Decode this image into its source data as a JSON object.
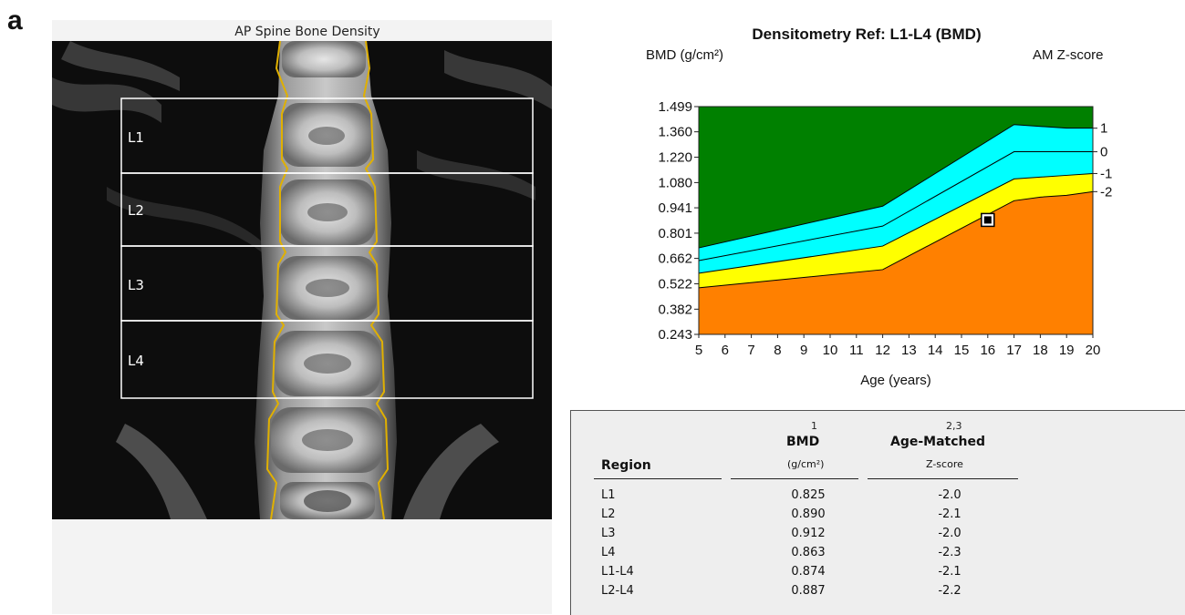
{
  "figure": {
    "panel_letter": "a"
  },
  "scan": {
    "title": "AP Spine Bone Density",
    "regions": [
      "L1",
      "L2",
      "L3",
      "L4"
    ]
  },
  "chart_data": {
    "type": "area",
    "title": "Densitometry Ref: L1-L4 (BMD)",
    "ylabel": "BMD (g/cm²)",
    "y2label": "AM Z-score",
    "xlabel": "Age (years)",
    "x_ticks": [
      "5",
      "6",
      "7",
      "8",
      "9",
      "10",
      "11",
      "12",
      "13",
      "14",
      "15",
      "16",
      "17",
      "18",
      "19",
      "20"
    ],
    "y_ticks": [
      "1.499",
      "1.360",
      "1.220",
      "1.080",
      "0.941",
      "0.801",
      "0.662",
      "0.522",
      "0.382",
      "0.243"
    ],
    "y2_ticks": [
      "1",
      "0",
      "-1",
      "-2"
    ],
    "xlim": [
      5,
      20
    ],
    "ylim": [
      0.243,
      1.499
    ],
    "x": [
      5,
      12,
      17,
      18,
      19,
      20
    ],
    "series": [
      {
        "zscore": "1",
        "values": [
          0.72,
          0.95,
          1.4,
          1.39,
          1.38,
          1.38
        ]
      },
      {
        "zscore": "0",
        "values": [
          0.65,
          0.84,
          1.25,
          1.25,
          1.25,
          1.25
        ]
      },
      {
        "zscore": "-1",
        "values": [
          0.58,
          0.73,
          1.1,
          1.11,
          1.12,
          1.13
        ]
      },
      {
        "zscore": "-2",
        "values": [
          0.5,
          0.6,
          0.98,
          1.0,
          1.01,
          1.03
        ]
      }
    ],
    "patient_point": {
      "x": 16,
      "y": 0.874
    },
    "colors": {
      "above_plus1": "#008000",
      "plus1_to_minus1": "#00ffff",
      "minus1_to_minus2": "#ffff00",
      "below_minus2": "#ff8000"
    }
  },
  "results": {
    "headers": {
      "region": "Region",
      "bmd_sup": "1",
      "bmd": "BMD",
      "bmd_unit": "(g/cm²)",
      "z_sup": "2,3",
      "z": "Age-Matched",
      "z_sub": "Z-score"
    },
    "rows": [
      {
        "region": "L1",
        "bmd": "0.825",
        "z": "-2.0"
      },
      {
        "region": "L2",
        "bmd": "0.890",
        "z": "-2.1"
      },
      {
        "region": "L3",
        "bmd": "0.912",
        "z": "-2.0"
      },
      {
        "region": "L4",
        "bmd": "0.863",
        "z": "-2.3"
      },
      {
        "region": "L1-L4",
        "bmd": "0.874",
        "z": "-2.1"
      },
      {
        "region": "L2-L4",
        "bmd": "0.887",
        "z": "-2.2"
      }
    ]
  }
}
